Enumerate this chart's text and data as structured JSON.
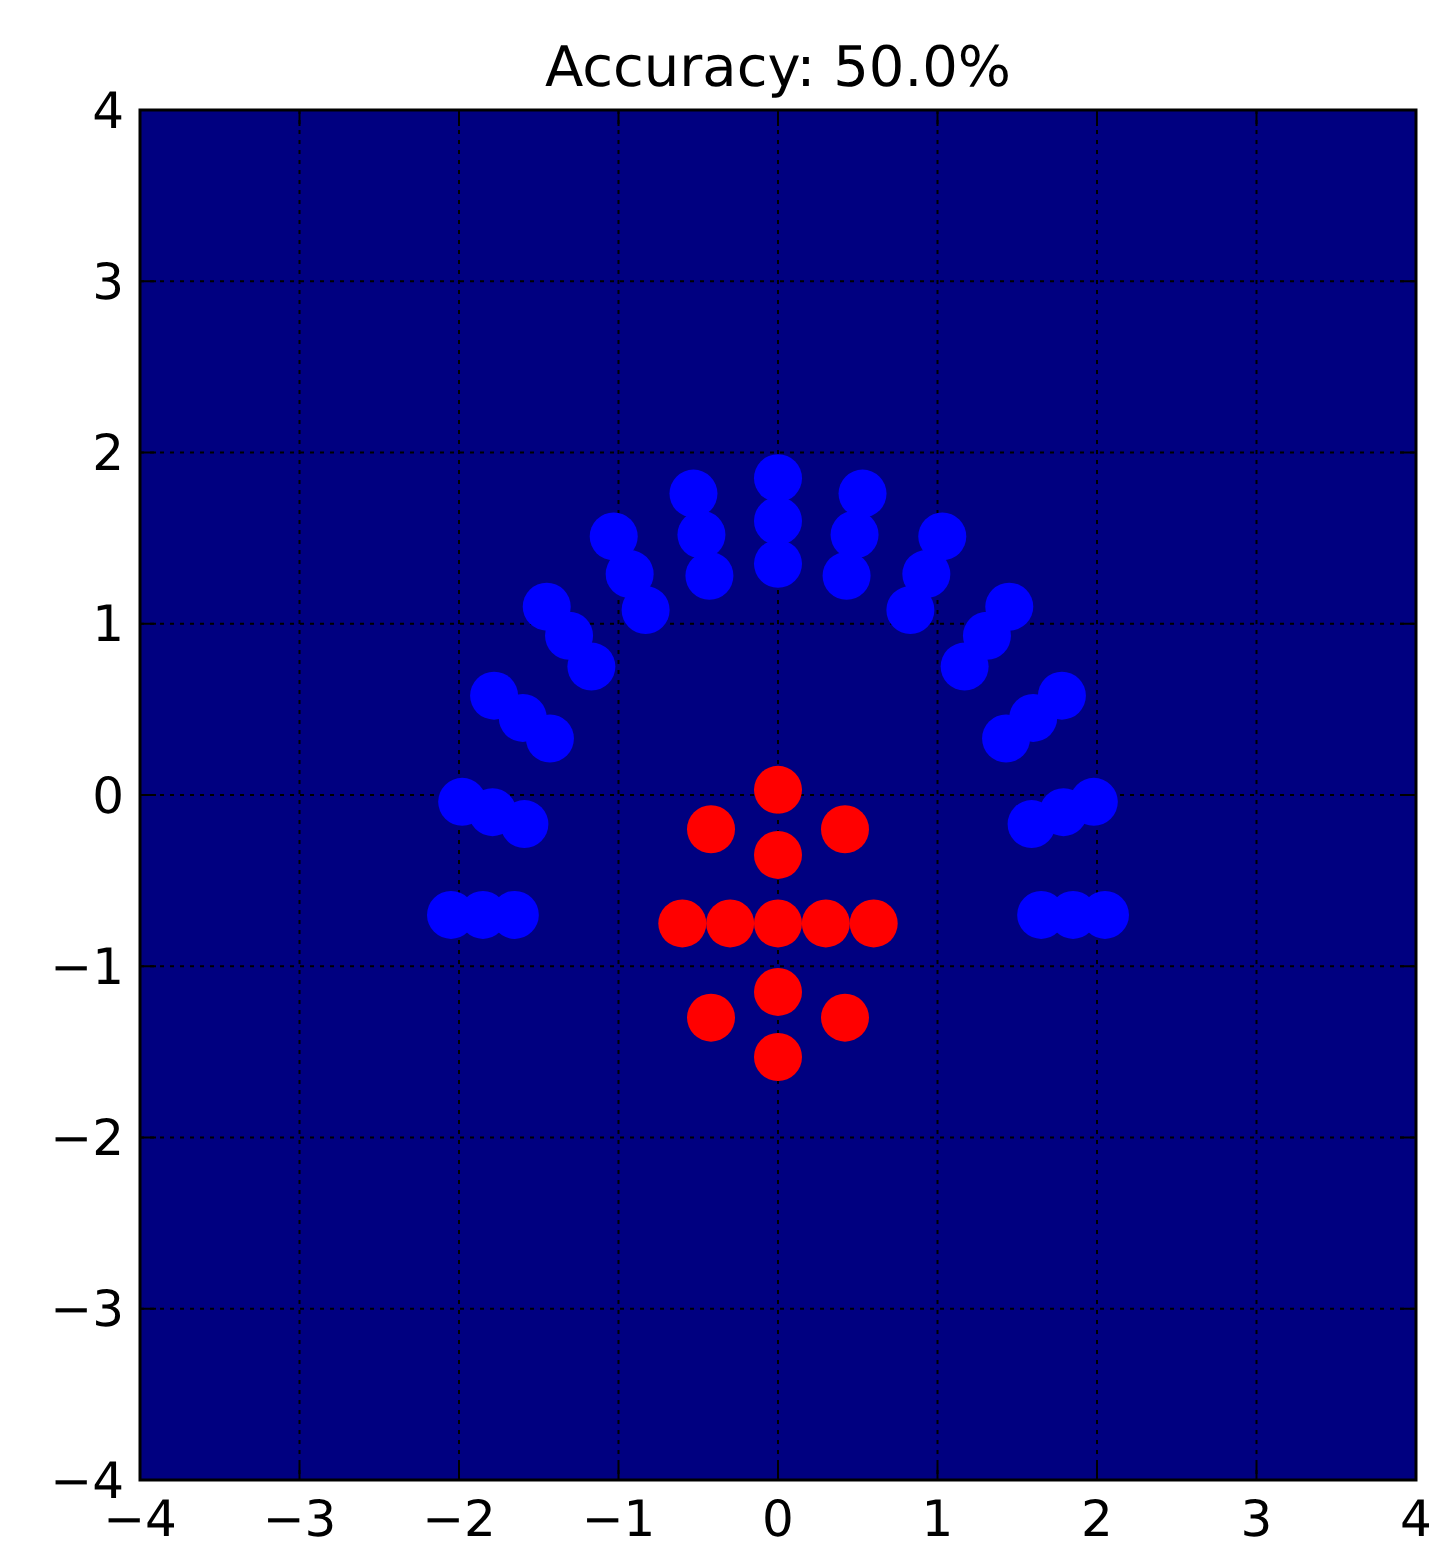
{
  "chart_data": {
    "type": "scatter",
    "title": "Accuracy: 50.0%",
    "xlim": [
      -4,
      4
    ],
    "ylim": [
      -4,
      4
    ],
    "xticks": [
      {
        "value": -4,
        "label": "−4"
      },
      {
        "value": -3,
        "label": "−3"
      },
      {
        "value": -2,
        "label": "−2"
      },
      {
        "value": -1,
        "label": "−1"
      },
      0,
      1,
      2,
      3,
      4
    ],
    "yticks": [
      {
        "value": -4,
        "label": "−4"
      },
      {
        "value": -3,
        "label": "−3"
      },
      {
        "value": -2,
        "label": "−2"
      },
      {
        "value": -1,
        "label": "−1"
      },
      0,
      1,
      2,
      3,
      4
    ],
    "grid": true,
    "marker": "circle",
    "series": [
      {
        "color": "#0000ff",
        "x": [
          2.05,
          1.98,
          1.78,
          1.45,
          1.03,
          0.53,
          0,
          -0.53,
          -1.03,
          -1.45,
          -1.78,
          -1.98,
          -2.05,
          1.85,
          1.79,
          1.6,
          1.31,
          0.93,
          0.48,
          0,
          -0.48,
          -0.93,
          -1.31,
          -1.6,
          -1.79,
          -1.85,
          1.65,
          1.59,
          1.43,
          1.17,
          0.83,
          0.43,
          0,
          -0.43,
          -0.83,
          -1.17,
          -1.43,
          -1.59,
          -1.65
        ],
        "values": [
          -0.7,
          -0.04,
          0.58,
          1.1,
          1.51,
          1.76,
          1.85,
          1.76,
          1.51,
          1.1,
          0.58,
          -0.04,
          -0.7,
          -0.7,
          -0.1,
          0.45,
          0.93,
          1.29,
          1.52,
          1.6,
          1.52,
          1.29,
          0.93,
          0.45,
          -0.1,
          -0.7,
          -0.7,
          -0.17,
          0.33,
          0.75,
          1.08,
          1.28,
          1.35,
          1.28,
          1.08,
          0.75,
          0.33,
          -0.17,
          -0.7
        ]
      },
      {
        "color": "#ff0000",
        "x": [
          0.6,
          0.42,
          0,
          -0.42,
          -0.6,
          -0.42,
          0,
          0.42,
          0.3,
          0,
          -0.3,
          0,
          0
        ],
        "values": [
          -0.75,
          -0.2,
          0.03,
          -0.2,
          -0.75,
          -1.3,
          -1.53,
          -1.3,
          -0.75,
          -0.35,
          -0.75,
          -1.15,
          -0.75
        ]
      }
    ]
  }
}
